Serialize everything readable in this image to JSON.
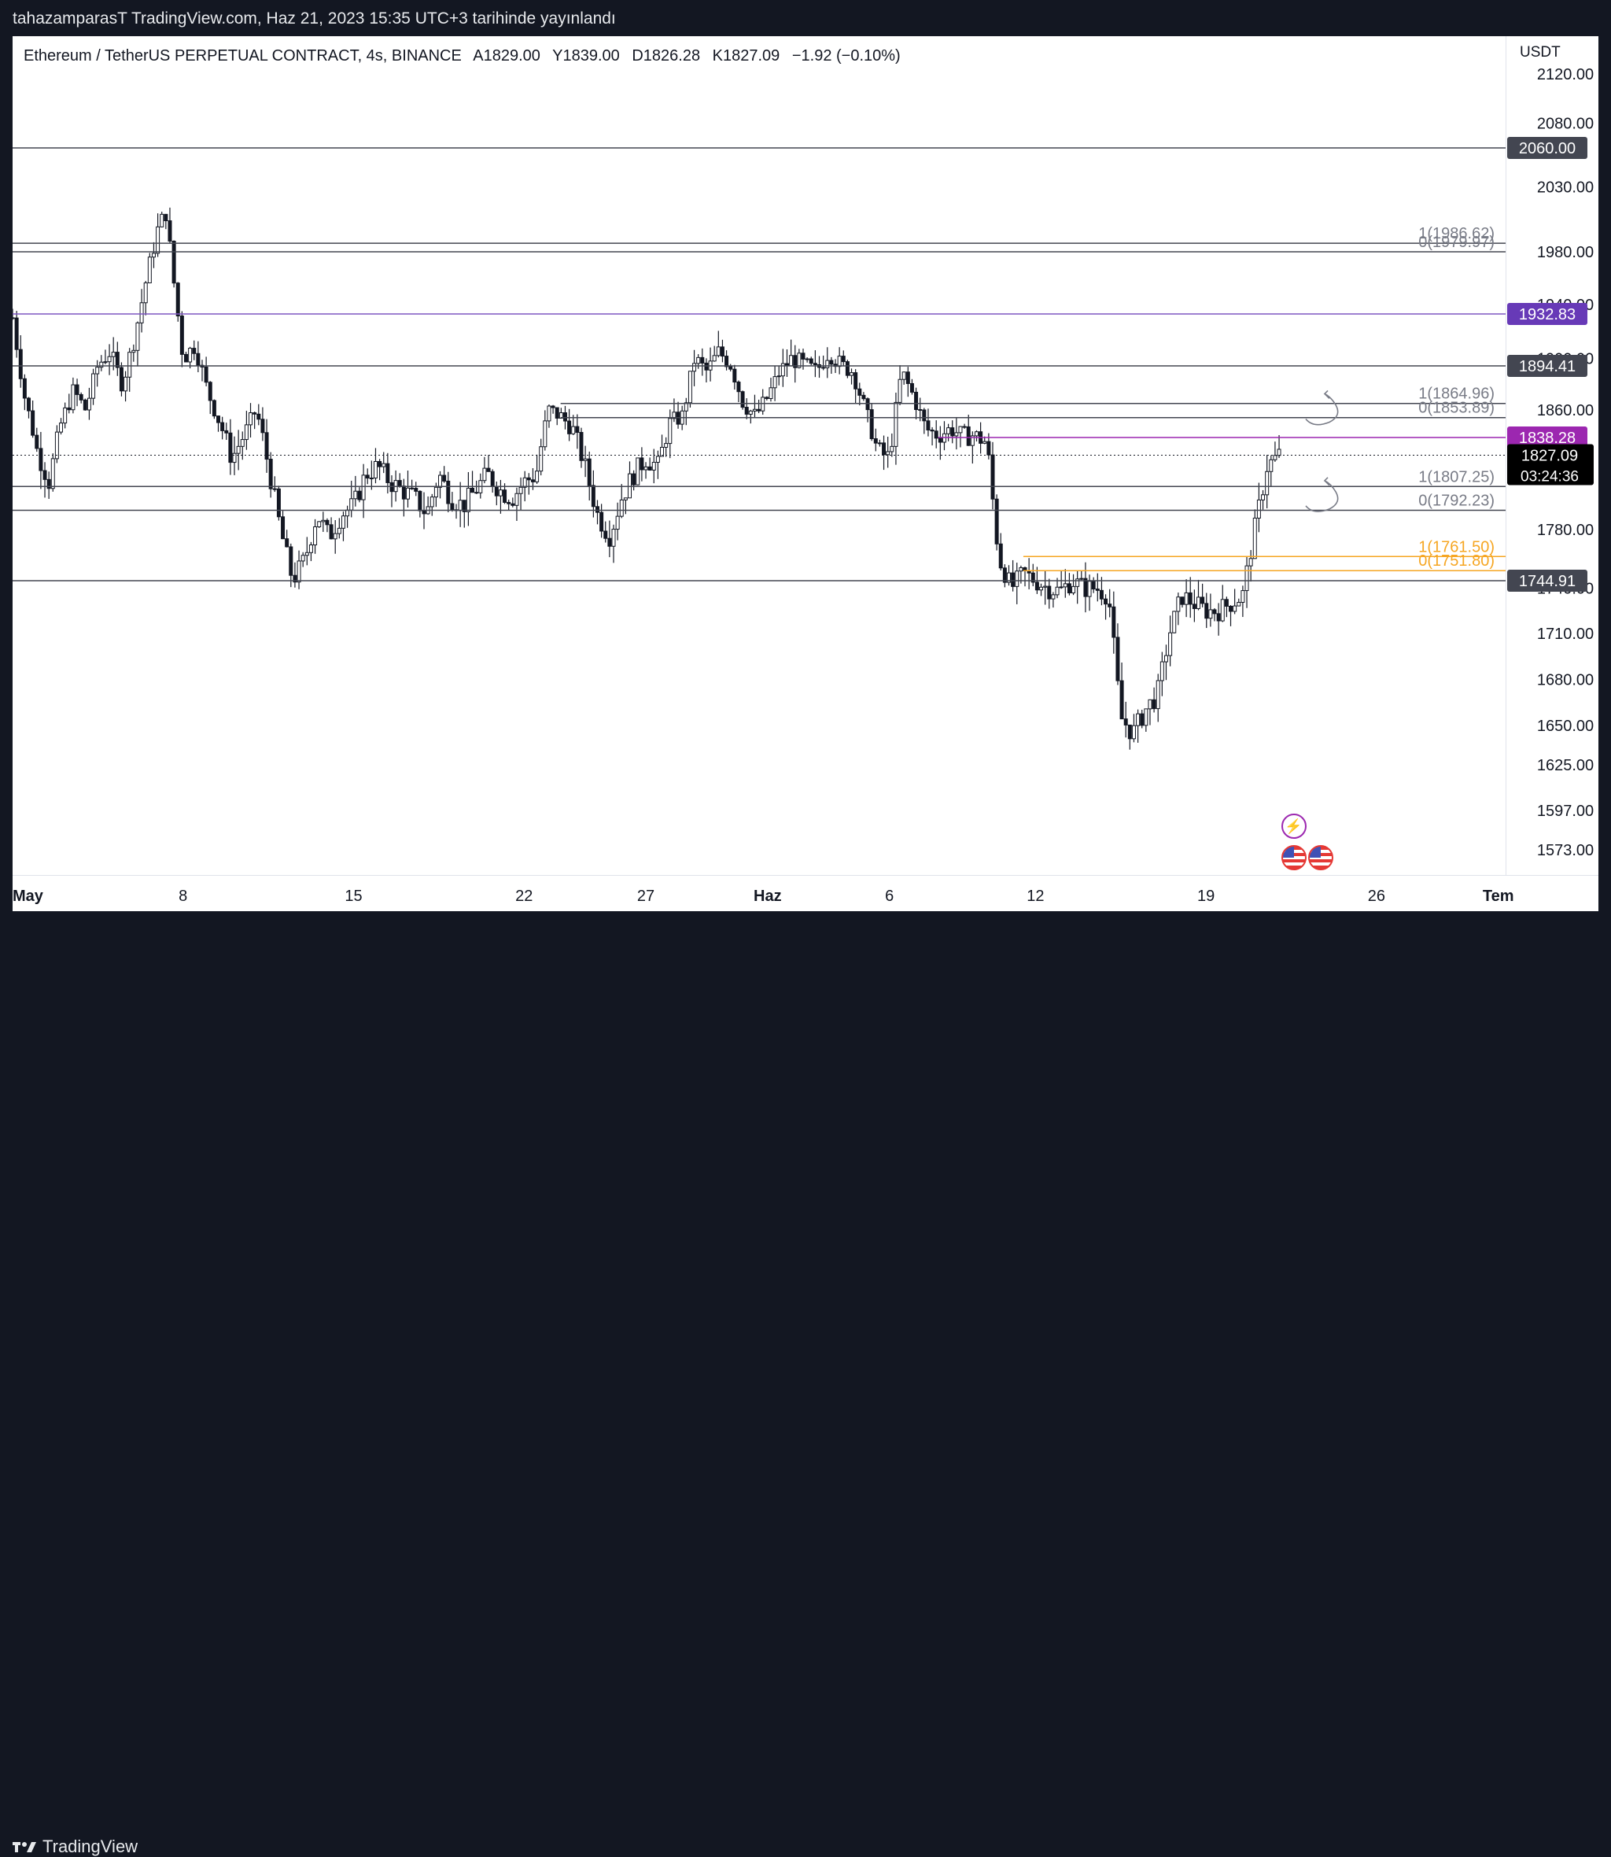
{
  "banner": {
    "text": "tahazamparasT TradingView.com, Haz 21, 2023 15:35 UTC+3 tarihinde yayınlandı"
  },
  "legend": {
    "symbol": "Ethereum / TetherUS PERPETUAL CONTRACT, 4s, BINANCE",
    "open": "A1829.00",
    "high": "Y1839.00",
    "low": "D1826.28",
    "close": "K1827.09",
    "change": "−1.92 (−0.10%)"
  },
  "footer": {
    "brand": "TradingView"
  },
  "colors": {
    "background": "#ffffff",
    "frame": "#131722",
    "candle": "#131722",
    "level_line": "#434651",
    "purple": "#7e57c2",
    "orange": "#f6a622",
    "label_gray": "#434651",
    "current_price_bg": "#000000"
  },
  "chart_data": {
    "type": "candlestick",
    "currency": "USDT",
    "ylim": [
      1560,
      2135
    ],
    "price_ticks": [
      "2120.00",
      "2080.00",
      "2030.00",
      "1980.00",
      "1940.00",
      "1900.00",
      "1860.00",
      "1780.00",
      "1740.00",
      "1710.00",
      "1680.00",
      "1650.00",
      "1625.00",
      "1597.00",
      "1573.00"
    ],
    "time_ticks": [
      {
        "label": "May",
        "day": 0,
        "bold": true
      },
      {
        "label": "8",
        "day": 7
      },
      {
        "label": "15",
        "day": 14
      },
      {
        "label": "22",
        "day": 21
      },
      {
        "label": "27",
        "day": 26
      },
      {
        "label": "Haz",
        "day": 31,
        "bold": true
      },
      {
        "label": "6",
        "day": 36
      },
      {
        "label": "12",
        "day": 42
      },
      {
        "label": "19",
        "day": 49
      },
      {
        "label": "26",
        "day": 56
      },
      {
        "label": "Tem",
        "day": 61,
        "bold": true
      }
    ],
    "x_range_days": [
      0,
      61.3
    ],
    "levels": [
      {
        "price": 2060.0,
        "color": "#434651",
        "label": "2060.00",
        "label_bg": "#434651"
      },
      {
        "price": 1986.62,
        "color": "#434651",
        "fib": "1(1986.62)",
        "fib_color": "#787b86"
      },
      {
        "price": 1979.97,
        "color": "#434651",
        "fib": "0(1979.97)",
        "fib_color": "#787b86"
      },
      {
        "price": 1932.83,
        "color": "#7e57c2",
        "label": "1932.83",
        "label_bg": "#673ab7"
      },
      {
        "price": 1894.41,
        "color": "#434651",
        "label": "1894.41",
        "label_bg": "#434651"
      },
      {
        "price": 1864.96,
        "color": "#434651",
        "fib": "1(1864.96)",
        "fib_color": "#787b86",
        "start_day": 22.5
      },
      {
        "price": 1853.89,
        "color": "#434651",
        "fib": "0(1853.89)",
        "fib_color": "#787b86",
        "start_day": 22.5
      },
      {
        "price": 1838.28,
        "color": "#9c27b0",
        "label": "1838.28",
        "label_bg": "#9c27b0",
        "start_day": 38
      },
      {
        "price": 1807.25,
        "color": "#434651",
        "fib": "1(1807.25)",
        "fib_color": "#787b86"
      },
      {
        "price": 1792.23,
        "color": "#434651",
        "fib": "0(1792.23)",
        "fib_color": "#787b86"
      },
      {
        "price": 1761.5,
        "color": "#f6a622",
        "fib": "1(1761.50)",
        "fib_color": "#f6a622",
        "start_day": 41.5
      },
      {
        "price": 1751.8,
        "color": "#f6a622",
        "fib": "0(1751.80)",
        "fib_color": "#f6a622",
        "start_day": 41.5
      },
      {
        "price": 1744.91,
        "color": "#434651",
        "label": "1744.91",
        "label_bg": "#434651"
      }
    ],
    "current_price": {
      "price": 1827.09,
      "label": "1827.09",
      "countdown": "03:24:36"
    },
    "series_path": [
      [
        0,
        1930
      ],
      [
        0.5,
        1870
      ],
      [
        1,
        1830
      ],
      [
        1.5,
        1810
      ],
      [
        2,
        1850
      ],
      [
        2.5,
        1875
      ],
      [
        3,
        1860
      ],
      [
        3.5,
        1895
      ],
      [
        4,
        1905
      ],
      [
        4.5,
        1880
      ],
      [
        5,
        1915
      ],
      [
        5.5,
        1960
      ],
      [
        6,
        2000
      ],
      [
        6.3,
        2010
      ],
      [
        6.6,
        1960
      ],
      [
        7,
        1900
      ],
      [
        7.5,
        1910
      ],
      [
        8,
        1875
      ],
      [
        8.5,
        1850
      ],
      [
        9,
        1825
      ],
      [
        9.5,
        1840
      ],
      [
        10,
        1860
      ],
      [
        10.5,
        1820
      ],
      [
        11,
        1780
      ],
      [
        11.5,
        1745
      ],
      [
        12,
        1760
      ],
      [
        12.5,
        1790
      ],
      [
        13,
        1775
      ],
      [
        13.5,
        1790
      ],
      [
        14,
        1795
      ],
      [
        14.5,
        1815
      ],
      [
        15,
        1820
      ],
      [
        15.5,
        1810
      ],
      [
        16,
        1805
      ],
      [
        16.5,
        1800
      ],
      [
        17,
        1790
      ],
      [
        17.5,
        1815
      ],
      [
        18,
        1800
      ],
      [
        18.5,
        1795
      ],
      [
        19,
        1805
      ],
      [
        19.5,
        1815
      ],
      [
        20,
        1805
      ],
      [
        20.5,
        1800
      ],
      [
        21,
        1810
      ],
      [
        21.5,
        1815
      ],
      [
        22,
        1860
      ],
      [
        22.5,
        1855
      ],
      [
        23,
        1845
      ],
      [
        23.5,
        1820
      ],
      [
        24,
        1790
      ],
      [
        24.5,
        1775
      ],
      [
        25,
        1800
      ],
      [
        25.5,
        1815
      ],
      [
        26,
        1825
      ],
      [
        26.5,
        1820
      ],
      [
        27,
        1850
      ],
      [
        27.5,
        1855
      ],
      [
        28,
        1900
      ],
      [
        28.5,
        1890
      ],
      [
        29,
        1905
      ],
      [
        29.5,
        1895
      ],
      [
        30,
        1865
      ],
      [
        30.5,
        1855
      ],
      [
        31,
        1870
      ],
      [
        31.5,
        1890
      ],
      [
        32,
        1900
      ],
      [
        32.5,
        1895
      ],
      [
        33,
        1890
      ],
      [
        33.5,
        1905
      ],
      [
        34,
        1895
      ],
      [
        34.5,
        1890
      ],
      [
        35,
        1860
      ],
      [
        35.5,
        1830
      ],
      [
        36,
        1825
      ],
      [
        36.5,
        1890
      ],
      [
        37,
        1870
      ],
      [
        37.5,
        1845
      ],
      [
        38,
        1840
      ],
      [
        38.5,
        1845
      ],
      [
        39,
        1840
      ],
      [
        39.5,
        1840
      ],
      [
        40,
        1835
      ],
      [
        40.5,
        1760
      ],
      [
        41,
        1740
      ],
      [
        41.5,
        1750
      ],
      [
        42,
        1745
      ],
      [
        42.5,
        1740
      ],
      [
        43,
        1738
      ],
      [
        43.5,
        1745
      ],
      [
        44,
        1740
      ],
      [
        44.5,
        1740
      ],
      [
        45,
        1735
      ],
      [
        45.5,
        1655
      ],
      [
        46,
        1645
      ],
      [
        46.5,
        1660
      ],
      [
        47,
        1670
      ],
      [
        47.5,
        1710
      ],
      [
        48,
        1735
      ],
      [
        48.5,
        1730
      ],
      [
        49,
        1725
      ],
      [
        49.5,
        1725
      ],
      [
        50,
        1730
      ],
      [
        50.5,
        1735
      ],
      [
        51,
        1780
      ],
      [
        51.5,
        1820
      ],
      [
        52,
        1827
      ]
    ]
  },
  "markers": [
    {
      "type": "economic-event-icon",
      "glyph": "⚡",
      "day": 52.6
    },
    {
      "type": "us-flag-icon",
      "day": 52.6
    },
    {
      "type": "us-flag-icon",
      "day": 53.7
    }
  ]
}
